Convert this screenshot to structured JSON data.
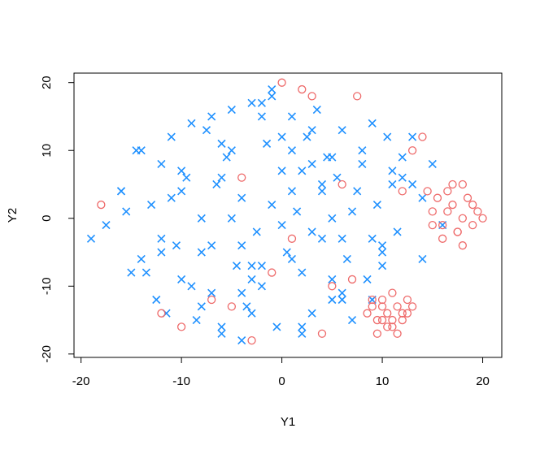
{
  "chart_data": {
    "type": "scatter",
    "xlabel": "Y1",
    "ylabel": "Y2",
    "xlim": [
      -20.7,
      21.9
    ],
    "ylim": [
      -20.5,
      21.4
    ],
    "xticks": [
      -20,
      -10,
      0,
      10,
      20
    ],
    "yticks": [
      -20,
      -10,
      0,
      10,
      20
    ],
    "series": [
      {
        "color": "#1E90FF",
        "marker": "x",
        "x": [
          -19,
          -17.5,
          -16,
          -15,
          -14.5,
          -14,
          -13,
          -12.5,
          -12,
          -11.5,
          -11,
          -10.5,
          -10,
          -9.5,
          -9,
          -8.5,
          -8,
          -7.5,
          -7,
          -6.5,
          -6,
          -5.5,
          -5,
          -4.5,
          -4,
          -3.5,
          -3,
          -2.5,
          -2,
          -1.5,
          -1,
          -0.5,
          0,
          0.5,
          1,
          1.5,
          2,
          2.5,
          3,
          3.5,
          4,
          4.5,
          5,
          5.5,
          6,
          6.5,
          7,
          7.5,
          8,
          8.5,
          9,
          9.5,
          10,
          10.5,
          11,
          11.5,
          12,
          13,
          14,
          15,
          -15.5,
          -13.5,
          -12,
          -10,
          -8,
          -6,
          -4,
          -2,
          0,
          2,
          4,
          6,
          8,
          10,
          12,
          -11,
          -9,
          -7,
          -5,
          -3,
          -1,
          1,
          3,
          5,
          7,
          9,
          11,
          -8,
          -6,
          -4,
          -2,
          0,
          2,
          4,
          6,
          -5,
          -3,
          -1,
          1,
          3,
          5,
          -14,
          -10,
          -6,
          -2,
          2,
          6,
          10,
          14,
          16,
          -16,
          -12,
          -7,
          -3,
          1,
          5,
          9,
          13,
          -4,
          3
        ],
        "values": [
          -3,
          -1,
          4,
          -8,
          10,
          -6,
          2,
          -12,
          8,
          -14,
          12,
          -4,
          -9,
          6,
          14,
          -15,
          0,
          13,
          -11,
          5,
          -17,
          9,
          16,
          -7,
          3,
          -13,
          17,
          -2,
          -10,
          11,
          18,
          -16,
          7,
          -5,
          15,
          1,
          -8,
          12,
          -14,
          16,
          -3,
          9,
          -12,
          6,
          13,
          -6,
          -15,
          4,
          10,
          -9,
          14,
          2,
          -5,
          12,
          7,
          -2,
          9,
          5,
          3,
          8,
          1,
          -8,
          -5,
          7,
          -13,
          11,
          -18,
          15,
          -1,
          -16,
          4,
          -11,
          8,
          -7,
          6,
          3,
          -10,
          -4,
          10,
          -14,
          2,
          -6,
          13,
          -9,
          1,
          -3,
          5,
          -5,
          6,
          -11,
          17,
          12,
          -17,
          5,
          -12,
          0,
          -7,
          19,
          4,
          -2,
          9,
          10,
          4,
          -16,
          -7,
          7,
          -3,
          -4,
          -6,
          -1,
          4,
          -3,
          15,
          -9,
          10,
          0,
          -12,
          12,
          -4,
          8
        ]
      },
      {
        "color": "#EE6A6A",
        "marker": "o",
        "x": [
          15,
          15.5,
          16,
          16.5,
          17,
          17.5,
          18,
          18.5,
          19,
          19.5,
          20,
          16,
          17,
          18,
          15,
          16.5,
          17.5,
          19,
          14.5,
          18,
          9,
          9.5,
          10,
          10.5,
          11,
          11.5,
          12,
          12.5,
          9.5,
          10.5,
          11,
          12,
          10,
          11.5,
          8.5,
          9,
          10,
          11,
          12.5,
          13,
          -18,
          -10,
          -5,
          -1,
          0,
          2,
          3,
          7.5,
          5,
          13,
          14,
          -12,
          -7,
          4,
          -3,
          6,
          12,
          7,
          1,
          -4
        ],
        "values": [
          1,
          3,
          -1,
          4,
          2,
          -2,
          0,
          3,
          -1,
          1,
          0,
          -3,
          5,
          -4,
          -1,
          1,
          -2,
          2,
          4,
          5,
          -13,
          -15,
          -12,
          -14,
          -16,
          -13,
          -15,
          -12,
          -17,
          -16,
          -11,
          -14,
          -15,
          -17,
          -14,
          -12,
          -13,
          -15,
          -14,
          -13,
          2,
          -16,
          -13,
          -8,
          20,
          19,
          18,
          18,
          -10,
          10,
          12,
          -14,
          -12,
          -17,
          -18,
          5,
          4,
          -9,
          -3,
          6
        ]
      }
    ]
  }
}
